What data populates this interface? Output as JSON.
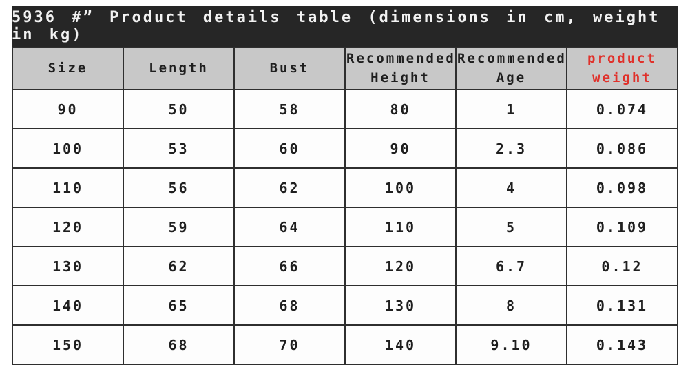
{
  "title": "5936 #” Product details table (dimensions in cm, weight in kg)",
  "table": {
    "headers": [
      "Size",
      "Length",
      "Bust",
      "Recommended\nHeight",
      "Recommended\nAge",
      "product\nweight"
    ],
    "rows": [
      [
        "90",
        "50",
        "58",
        "80",
        "1",
        "0.074"
      ],
      [
        "100",
        "53",
        "60",
        "90",
        "2.3",
        "0.086"
      ],
      [
        "110",
        "56",
        "62",
        "100",
        "4",
        "0.098"
      ],
      [
        "120",
        "59",
        "64",
        "110",
        "5",
        "0.109"
      ],
      [
        "130",
        "62",
        "66",
        "120",
        "6.7",
        "0.12"
      ],
      [
        "140",
        "65",
        "68",
        "130",
        "8",
        "0.131"
      ],
      [
        "150",
        "68",
        "70",
        "140",
        "9.10",
        "0.143"
      ]
    ]
  },
  "colors": {
    "title_bar_bg": "#262626",
    "title_text": "#f2f2f2",
    "header_bg": "#c8c8c8",
    "border": "#2f2f2f",
    "cell_text": "#1f1f1f",
    "accent_red": "#e0312b"
  },
  "chart_data": {
    "type": "table",
    "title": "5936 #” Product details table (dimensions in cm, weight in kg)",
    "columns": [
      "Size",
      "Length",
      "Bust",
      "Recommended Height",
      "Recommended Age",
      "product weight"
    ],
    "rows": [
      [
        "90",
        "50",
        "58",
        "80",
        "1",
        "0.074"
      ],
      [
        "100",
        "53",
        "60",
        "90",
        "2.3",
        "0.086"
      ],
      [
        "110",
        "56",
        "62",
        "100",
        "4",
        "0.098"
      ],
      [
        "120",
        "59",
        "64",
        "110",
        "5",
        "0.109"
      ],
      [
        "130",
        "62",
        "66",
        "120",
        "6.7",
        "0.12"
      ],
      [
        "140",
        "65",
        "68",
        "130",
        "8",
        "0.131"
      ],
      [
        "150",
        "68",
        "70",
        "140",
        "9.10",
        "0.143"
      ]
    ]
  }
}
